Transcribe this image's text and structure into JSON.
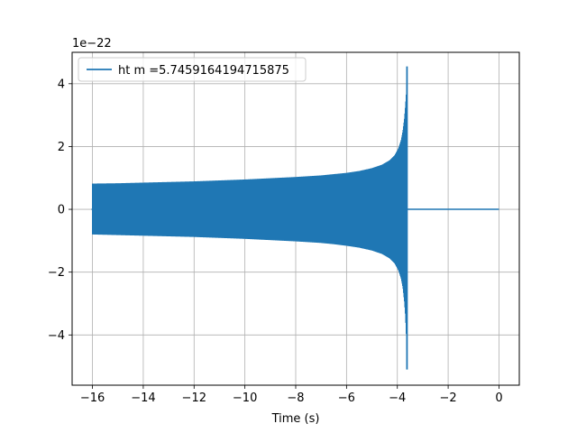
{
  "chart_data": {
    "type": "line",
    "title": "",
    "xlabel": "Time (s)",
    "ylabel": "",
    "y_scale_label": "1e−22",
    "y_scale": 1e-22,
    "xlim": [
      -16.8,
      0.8
    ],
    "ylim": [
      -5.6,
      5.0
    ],
    "grid": true,
    "legend_position": "top-left",
    "x_ticks": [
      -16,
      -14,
      -12,
      -10,
      -8,
      -6,
      -4,
      -2,
      0
    ],
    "x_tick_labels": [
      "−16",
      "−14",
      "−12",
      "−10",
      "−8",
      "−6",
      "−4",
      "−2",
      "0"
    ],
    "y_ticks": [
      -4,
      -2,
      0,
      2,
      4
    ],
    "y_tick_labels": [
      "−4",
      "−2",
      "0",
      "2",
      "4"
    ],
    "series": [
      {
        "name": "ht m =5.7459164194715875",
        "color": "#1f77b4",
        "x": [
          -16.0,
          -15.0,
          -14.0,
          -13.0,
          -12.0,
          -11.0,
          -10.0,
          -9.0,
          -8.0,
          -7.0,
          -6.5,
          -6.0,
          -5.5,
          -5.0,
          -4.6,
          -4.3,
          -4.1,
          -3.95,
          -3.85,
          -3.78,
          -3.72,
          -3.68,
          -3.64,
          -3.62,
          -3.6,
          -3.5,
          -2.0,
          -1.0,
          0.0
        ],
        "envelope_upper": [
          0.82,
          0.83,
          0.85,
          0.87,
          0.89,
          0.92,
          0.95,
          0.99,
          1.03,
          1.08,
          1.12,
          1.16,
          1.22,
          1.31,
          1.42,
          1.56,
          1.72,
          1.95,
          2.2,
          2.5,
          2.9,
          3.3,
          3.8,
          4.4,
          0.0,
          0.0,
          0.0,
          0.0,
          0.0
        ],
        "envelope_lower": [
          -0.8,
          -0.82,
          -0.84,
          -0.86,
          -0.88,
          -0.91,
          -0.94,
          -0.98,
          -1.02,
          -1.07,
          -1.11,
          -1.16,
          -1.22,
          -1.31,
          -1.42,
          -1.56,
          -1.72,
          -1.95,
          -2.2,
          -2.5,
          -2.95,
          -3.4,
          -4.2,
          -5.1,
          0.0,
          0.0,
          0.0,
          0.0,
          0.0
        ],
        "peak_max": 4.55,
        "peak_min": -5.1,
        "merger_time": -3.62
      }
    ]
  }
}
